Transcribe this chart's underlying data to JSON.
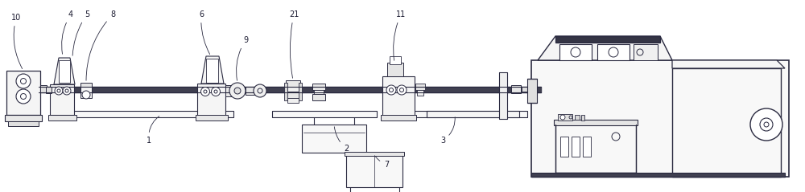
{
  "bg_color": "#ffffff",
  "line_color": "#2a2a40",
  "lw": 0.7,
  "figsize": [
    10.0,
    2.39
  ],
  "dpi": 100,
  "label_fs": 7.0,
  "label_color": "#1a1a30"
}
